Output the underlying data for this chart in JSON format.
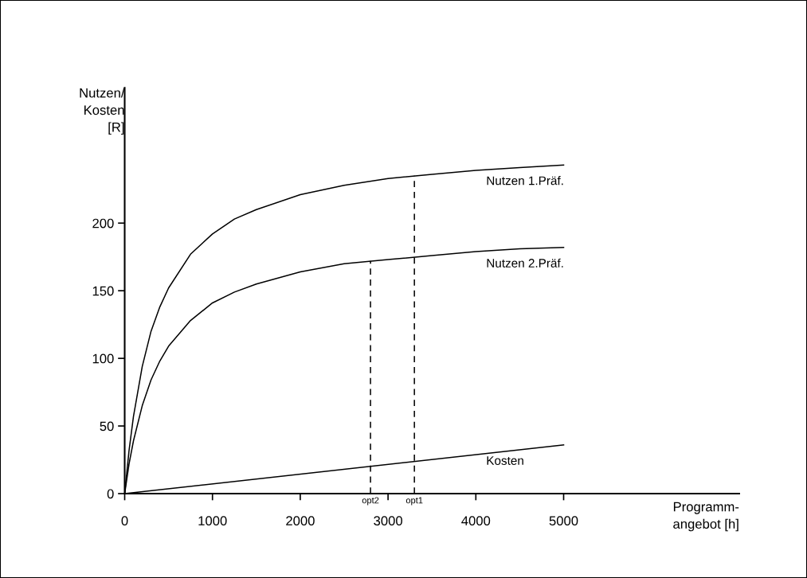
{
  "chart_data": {
    "type": "line",
    "xlabel": "Programm-\nangebot [h]",
    "ylabel": "Nutzen/\nKosten\n[R]",
    "xlim": [
      0,
      7000
    ],
    "ylim": [
      0,
      300
    ],
    "xticks": [
      0,
      1000,
      2000,
      3000,
      4000,
      5000
    ],
    "yticks": [
      0,
      50,
      100,
      150,
      200
    ],
    "grid": false,
    "legend": false,
    "marker": "none",
    "series": [
      {
        "name": "Nutzen 1.Präf.",
        "color": "#000000",
        "line_style": "solid",
        "x": [
          0,
          50,
          100,
          200,
          300,
          400,
          500,
          750,
          1000,
          1250,
          1500,
          2000,
          2500,
          3000,
          3500,
          4000,
          4500,
          5000
        ],
        "values": [
          0,
          32,
          57,
          94,
          120,
          138,
          152,
          177,
          192,
          203,
          210,
          221,
          228,
          233,
          236,
          239,
          241,
          243
        ]
      },
      {
        "name": "Nutzen 2.Präf.",
        "color": "#000000",
        "line_style": "solid",
        "x": [
          0,
          50,
          100,
          200,
          300,
          400,
          500,
          750,
          1000,
          1250,
          1500,
          2000,
          2500,
          3000,
          3500,
          4000,
          4500,
          5000
        ],
        "values": [
          0,
          22,
          39,
          65,
          84,
          98,
          109,
          128,
          141,
          149,
          155,
          164,
          170,
          173,
          176,
          179,
          181,
          182
        ]
      },
      {
        "name": "Kosten",
        "color": "#000000",
        "line_style": "solid",
        "x": [
          0,
          5000
        ],
        "values": [
          0,
          36
        ]
      },
      {
        "color": "#000000",
        "line_style": "dashed",
        "x": [
          2800,
          2800
        ],
        "values": [
          0,
          172
        ]
      },
      {
        "color": "#000000",
        "line_style": "dashed",
        "x": [
          3300,
          3300
        ],
        "values": [
          0,
          235
        ]
      }
    ],
    "annotations": [
      {
        "text": "opt2",
        "x": 2800,
        "y": 0
      },
      {
        "text": "opt1",
        "x": 3300,
        "y": 0
      }
    ]
  }
}
